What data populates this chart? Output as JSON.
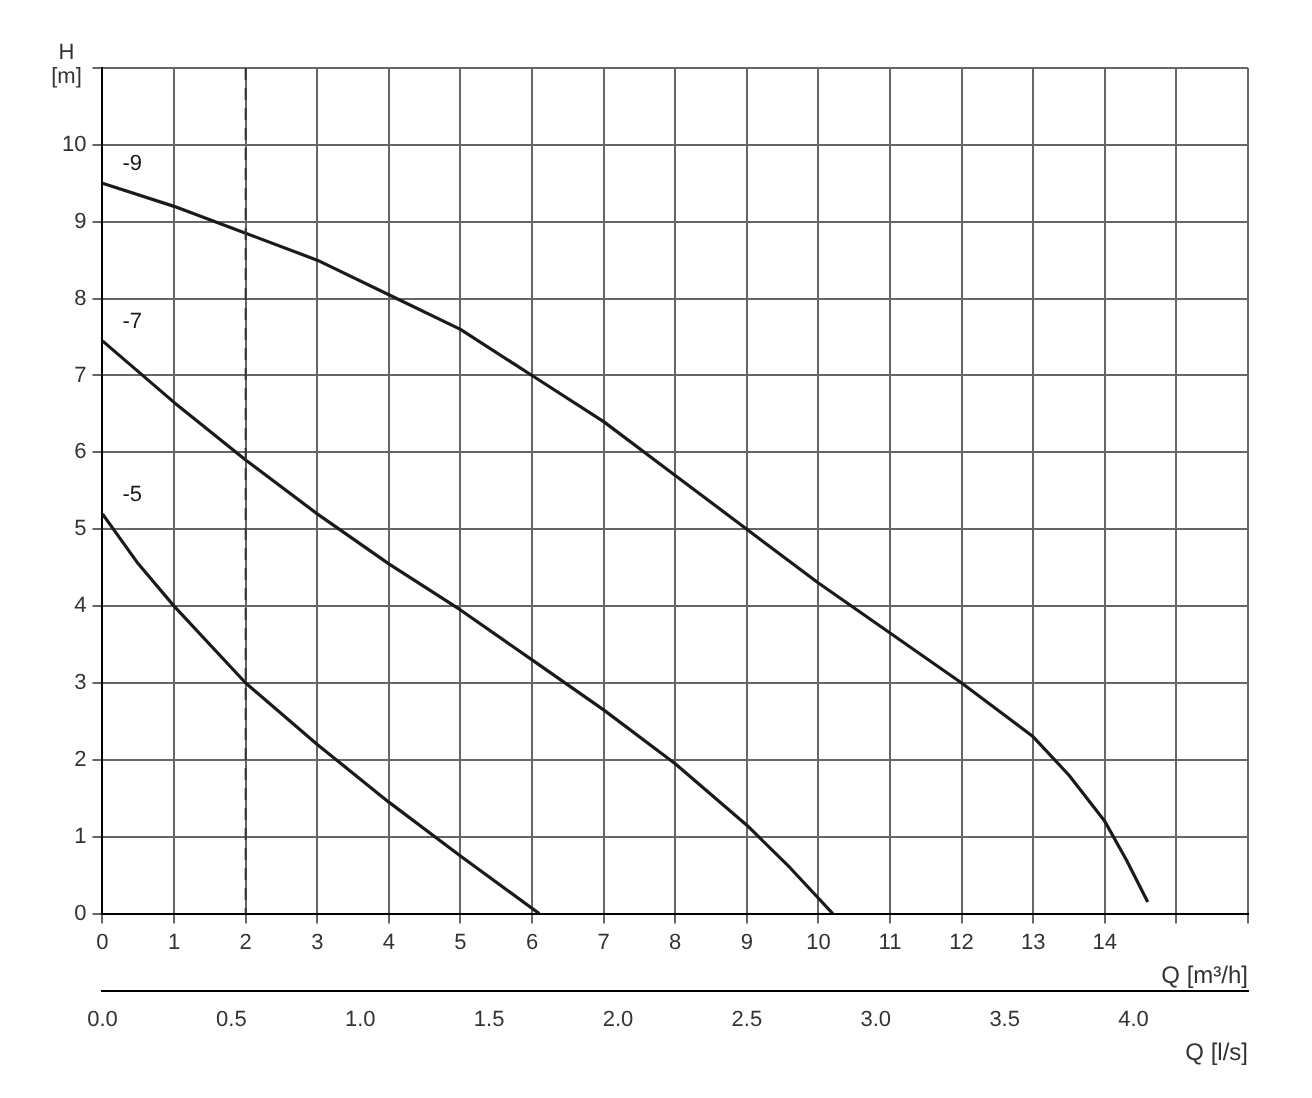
{
  "chart_data": {
    "type": "line",
    "xlabel": "Q [m³/h]",
    "ylabel": "H [m]",
    "x2label": "Q [l/s]",
    "xlim": [
      0,
      16
    ],
    "xticks": [
      0,
      1,
      2,
      3,
      4,
      5,
      6,
      7,
      8,
      9,
      10,
      11,
      12,
      13,
      14,
      {
        "value": 15,
        "label": null
      },
      {
        "value": 16,
        "label": null
      }
    ],
    "ylim": [
      0,
      11
    ],
    "yticks": [
      0,
      1,
      2,
      3,
      4,
      5,
      6,
      7,
      8,
      9,
      10,
      {
        "value": 11,
        "label": null
      }
    ],
    "x2lim": [
      0,
      4.444
    ],
    "x2ticks": [
      {
        "value": 0,
        "label": "0.0"
      },
      {
        "value": 0.5,
        "label": "0.5"
      },
      {
        "value": 1,
        "label": "1.0"
      },
      {
        "value": 1.5,
        "label": "1.5"
      },
      {
        "value": 2,
        "label": "2.0"
      },
      {
        "value": 2.5,
        "label": "2.5"
      },
      {
        "value": 3,
        "label": "3.0"
      },
      {
        "value": 3.5,
        "label": "3.5"
      },
      {
        "value": 4,
        "label": "4.0"
      }
    ],
    "grid": true,
    "legend": false,
    "marker": "none",
    "line_style": "solid",
    "ref_lines": [
      {
        "axis": "x",
        "value": 2,
        "line_style": "dashed",
        "color": "#333333"
      }
    ],
    "series": [
      {
        "name": "-9",
        "color": "#1a1a1a",
        "x": [
          0,
          1,
          2,
          3,
          4,
          5,
          6,
          7,
          8,
          9,
          10,
          11,
          12,
          13,
          13.5,
          14,
          14.3,
          14.6
        ],
        "values": [
          9.5,
          9.2,
          8.85,
          8.5,
          8.05,
          7.6,
          7.0,
          6.4,
          5.7,
          5.0,
          4.3,
          3.65,
          3.0,
          2.3,
          1.8,
          1.2,
          0.7,
          0.15
        ]
      },
      {
        "name": "-7",
        "color": "#1a1a1a",
        "x": [
          0,
          1,
          2,
          3,
          4,
          5,
          6,
          7,
          8,
          9,
          9.6,
          10.2
        ],
        "values": [
          7.45,
          6.65,
          5.9,
          5.2,
          4.55,
          3.95,
          3.3,
          2.65,
          1.95,
          1.15,
          0.6,
          0
        ]
      },
      {
        "name": "-5",
        "color": "#1a1a1a",
        "x": [
          0,
          0.5,
          1,
          2,
          3,
          4,
          5,
          6.1
        ],
        "values": [
          5.2,
          4.55,
          4.0,
          3.0,
          2.2,
          1.45,
          0.75,
          0
        ]
      }
    ]
  }
}
